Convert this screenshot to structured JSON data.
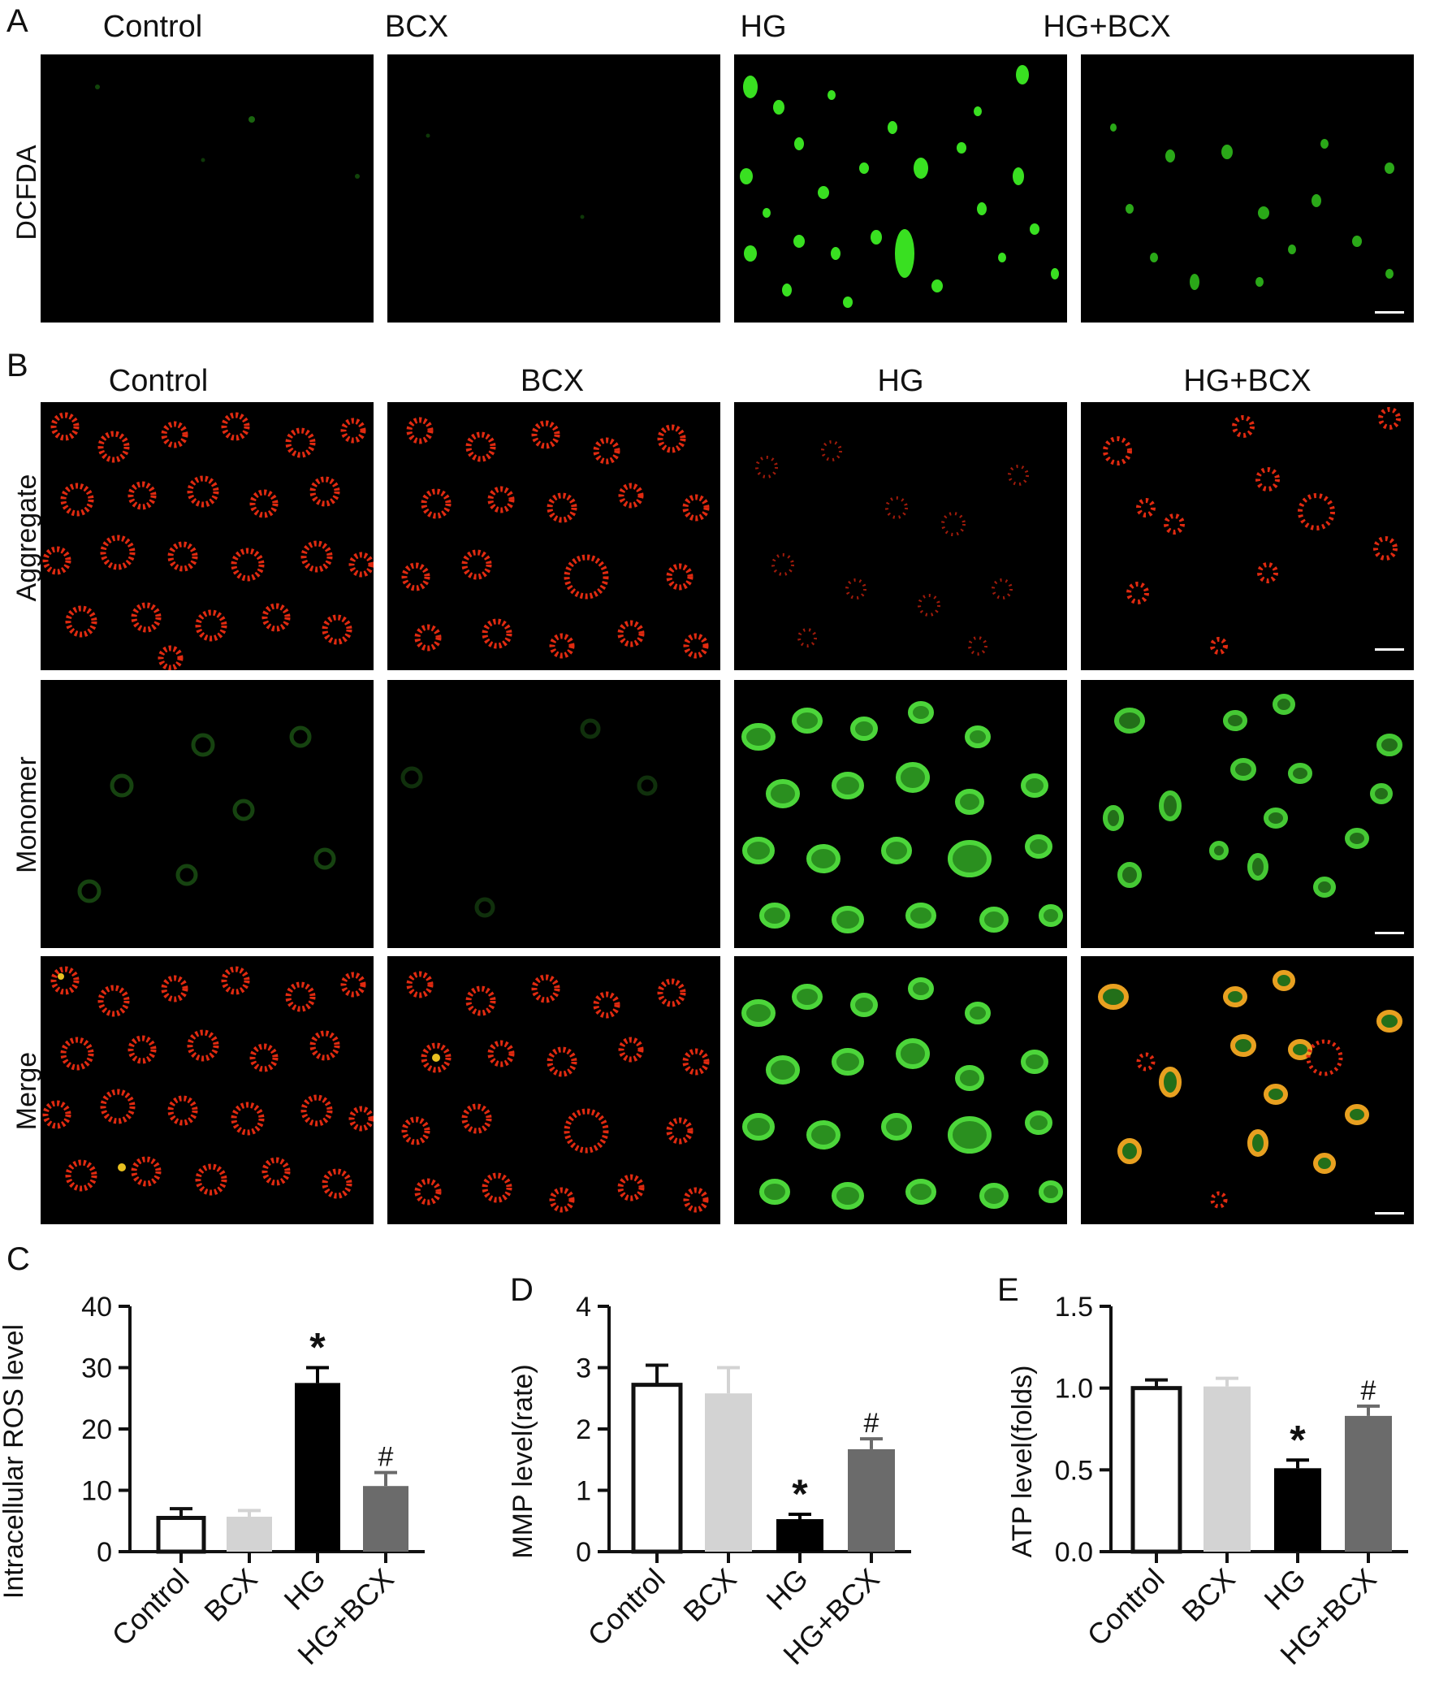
{
  "panel_a": {
    "letter": "A",
    "columns": [
      "Control",
      "BCX",
      "HG",
      "HG+BCX"
    ],
    "row_label": "DCFDA"
  },
  "panel_b": {
    "letter": "B",
    "columns": [
      "Control",
      "BCX",
      "HG",
      "HG+BCX"
    ],
    "rows": [
      "Aggregate",
      "Monomer",
      "Merge"
    ]
  },
  "panel_c_letter": "C",
  "panel_d_letter": "D",
  "panel_e_letter": "E",
  "colors": {
    "Control": "#ffffff",
    "BCX": "#d3d3d3",
    "HG": "#000000",
    "HG+BCX": "#6b6b6b",
    "dcfda_green": "#39e021",
    "aggregate_red": "#e02a10",
    "monomer_green": "#3fbf2e",
    "merge_yellow": "#e8c020"
  },
  "chart_data": [
    {
      "type": "bar",
      "panel": "C",
      "categories": [
        "Control",
        "BCX",
        "HG",
        "HG+BCX"
      ],
      "values": [
        5.5,
        5.7,
        27.5,
        10.7
      ],
      "errors": [
        1.5,
        1.0,
        2.5,
        2.2
      ],
      "annotations": [
        "",
        "",
        "*",
        "#"
      ],
      "ylabel": "Intracellular ROS level",
      "xlabel": "",
      "ylim": [
        0,
        40
      ],
      "yticks": [
        "0",
        "10",
        "20",
        "30",
        "40"
      ],
      "ytick_values": [
        0,
        10,
        20,
        30,
        40
      ]
    },
    {
      "type": "bar",
      "panel": "D",
      "categories": [
        "Control",
        "BCX",
        "HG",
        "HG+BCX"
      ],
      "values": [
        2.72,
        2.58,
        0.53,
        1.67
      ],
      "errors": [
        0.32,
        0.42,
        0.08,
        0.17
      ],
      "annotations": [
        "",
        "",
        "*",
        "#"
      ],
      "ylabel": "MMP level(rate)",
      "xlabel": "",
      "ylim": [
        0,
        4
      ],
      "yticks": [
        "0",
        "1",
        "2",
        "3",
        "4"
      ],
      "ytick_values": [
        0,
        1,
        2,
        3,
        4
      ]
    },
    {
      "type": "bar",
      "panel": "E",
      "categories": [
        "Control",
        "BCX",
        "HG",
        "HG+BCX"
      ],
      "values": [
        1.0,
        1.01,
        0.51,
        0.83
      ],
      "errors": [
        0.05,
        0.05,
        0.05,
        0.06
      ],
      "annotations": [
        "",
        "",
        "*",
        "#"
      ],
      "ylabel": "ATP level(folds)",
      "xlabel": "",
      "ylim": [
        0,
        1.5
      ],
      "yticks": [
        "0.0",
        "0.5",
        "1.0",
        "1.5"
      ],
      "ytick_values": [
        0,
        0.5,
        1.0,
        1.5
      ]
    }
  ]
}
